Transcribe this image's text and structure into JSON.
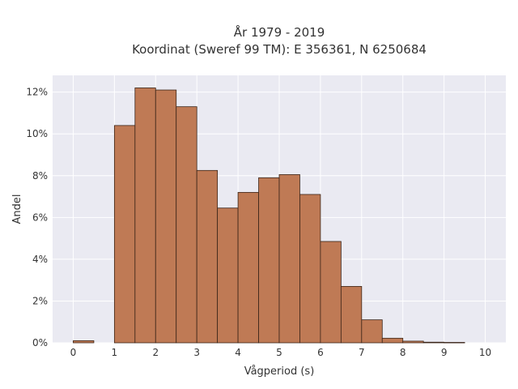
{
  "chart_data": {
    "type": "bar",
    "title": [
      "År 1979 - 2019",
      "Koordinat (Sweref 99 TM): E 356361, N 6250684"
    ],
    "xlabel": "Vågperiod (s)",
    "ylabel": "Andel",
    "xlim": [
      -0.5,
      10.5
    ],
    "ylim": [
      0,
      12.8
    ],
    "x_ticks": [
      0,
      1,
      2,
      3,
      4,
      5,
      6,
      7,
      8,
      9,
      10
    ],
    "y_ticks": [
      0,
      2,
      4,
      6,
      8,
      10,
      12
    ],
    "y_tick_suffix": "%",
    "grid": true,
    "bar_color": "#bf7a55",
    "background_color": "#eaeaf2",
    "bins": [
      {
        "start": 0.0,
        "end": 0.5,
        "value": 0.1
      },
      {
        "start": 0.5,
        "end": 1.0,
        "value": 0.0
      },
      {
        "start": 1.0,
        "end": 1.5,
        "value": 10.4
      },
      {
        "start": 1.5,
        "end": 2.0,
        "value": 12.2
      },
      {
        "start": 2.0,
        "end": 2.5,
        "value": 12.1
      },
      {
        "start": 2.5,
        "end": 3.0,
        "value": 11.3
      },
      {
        "start": 3.0,
        "end": 3.5,
        "value": 8.25
      },
      {
        "start": 3.5,
        "end": 4.0,
        "value": 6.45
      },
      {
        "start": 4.0,
        "end": 4.5,
        "value": 7.2
      },
      {
        "start": 4.5,
        "end": 5.0,
        "value": 7.9
      },
      {
        "start": 5.0,
        "end": 5.5,
        "value": 8.05
      },
      {
        "start": 5.5,
        "end": 6.0,
        "value": 7.1
      },
      {
        "start": 6.0,
        "end": 6.5,
        "value": 4.85
      },
      {
        "start": 6.5,
        "end": 7.0,
        "value": 2.7
      },
      {
        "start": 7.0,
        "end": 7.5,
        "value": 1.1
      },
      {
        "start": 7.5,
        "end": 8.0,
        "value": 0.22
      },
      {
        "start": 8.0,
        "end": 8.5,
        "value": 0.08
      },
      {
        "start": 8.5,
        "end": 9.0,
        "value": 0.03
      },
      {
        "start": 9.0,
        "end": 9.5,
        "value": 0.02
      }
    ]
  }
}
